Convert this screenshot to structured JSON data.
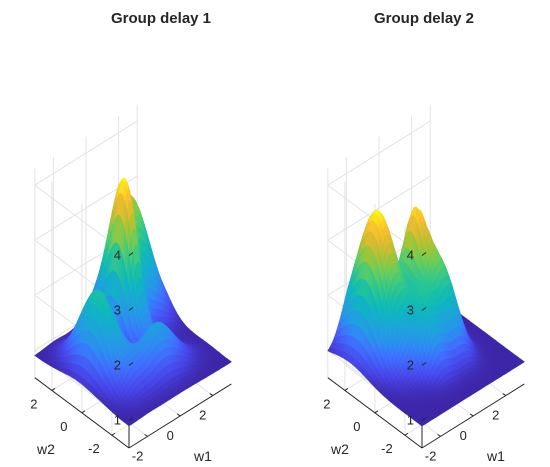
{
  "chart_data": [
    {
      "type": "surface",
      "title": "Group delay 1",
      "xlabel": "w1",
      "ylabel": "w2",
      "zlabel": "",
      "xlim": [
        -3.14,
        3.14
      ],
      "ylim": [
        -3.14,
        3.14
      ],
      "zlim": [
        0.5,
        4.3
      ],
      "xticks": [
        -2,
        0,
        2
      ],
      "yticks": [
        -2,
        0,
        2
      ],
      "zticks": [
        1,
        2,
        3,
        4
      ],
      "grid": true,
      "colormap": "parula",
      "base_value": 0.9,
      "peaks": [
        {
          "w1": -1.9,
          "w2": 0.2,
          "height": 2.45,
          "spread_w1": 0.55,
          "spread_w2": 1.1
        },
        {
          "w1": 0.4,
          "w2": 0.9,
          "height": 3.3,
          "spread_w1": 0.45,
          "spread_w2": 0.8
        },
        {
          "w1": 1.6,
          "w2": 2.0,
          "height": 3.15,
          "spread_w1": 0.95,
          "spread_w2": 0.9
        },
        {
          "w1": 0.0,
          "w2": -1.5,
          "height": 0.9,
          "spread_w1": 1.1,
          "spread_w2": 0.6
        }
      ]
    },
    {
      "type": "surface",
      "title": "Group delay 2",
      "xlabel": "w1",
      "ylabel": "w2",
      "zlabel": "",
      "xlim": [
        -3.14,
        3.14
      ],
      "ylim": [
        -3.14,
        3.14
      ],
      "zlim": [
        0.5,
        4.3
      ],
      "xticks": [
        -2,
        0,
        2
      ],
      "yticks": [
        -2,
        0,
        2
      ],
      "zticks": [
        1,
        2,
        3,
        4
      ],
      "grid": true,
      "colormap": "parula",
      "base_value": 0.9,
      "peaks": [
        {
          "w1": -1.4,
          "w2": 1.7,
          "height": 3.5,
          "spread_w1": 0.75,
          "spread_w2": 1.2
        },
        {
          "w1": 0.3,
          "w2": 1.1,
          "height": 2.9,
          "spread_w1": 0.4,
          "spread_w2": 0.7
        },
        {
          "w1": 0.8,
          "w2": -0.2,
          "height": 2.4,
          "spread_w1": 0.6,
          "spread_w2": 0.8
        },
        {
          "w1": -0.5,
          "w2": -0.6,
          "height": 1.9,
          "spread_w1": 0.5,
          "spread_w2": 0.7
        }
      ]
    }
  ]
}
